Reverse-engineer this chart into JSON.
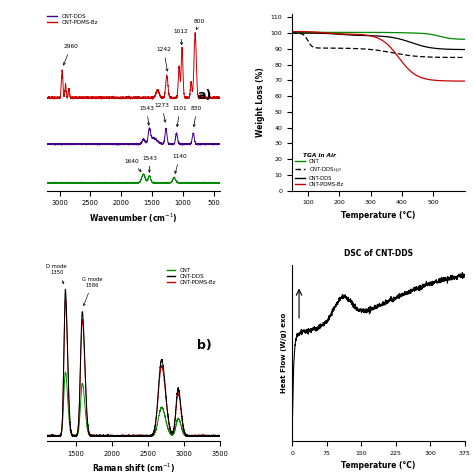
{
  "fig_width": 4.74,
  "fig_height": 4.74,
  "dpi": 100,
  "colors": {
    "cnt_pdms_bz": "#cc0000",
    "cnt_dds": "#440088",
    "cnt": "#008800",
    "black": "#000000"
  },
  "panel_a": {
    "xlim": [
      3200,
      400
    ],
    "xticks": [
      3000,
      2500,
      2000,
      1500,
      1000,
      500
    ],
    "xlabel": "Wavenumber (cm$^{-1}$)"
  },
  "panel_b": {
    "xlim": [
      1100,
      3500
    ],
    "xlabel": "Raman shift (cm$^{-1}$)"
  },
  "panel_c": {
    "xlim": [
      50,
      600
    ],
    "ylim": [
      0,
      112
    ],
    "yticks": [
      0,
      10,
      20,
      30,
      40,
      50,
      60,
      70,
      80,
      90,
      100,
      110
    ],
    "xticks": [
      100,
      200,
      300,
      400,
      500
    ],
    "xlabel": "Temperature (°C)",
    "ylabel": "Weight Loss (%)"
  },
  "panel_d": {
    "xlim": [
      0,
      375
    ],
    "xticks": [
      0,
      75,
      150,
      225,
      300,
      375
    ],
    "xlabel": "Temperature (°C)",
    "ylabel": "Heat Flow (W/g) exo →",
    "title": "DSC of CNT-DDS"
  }
}
